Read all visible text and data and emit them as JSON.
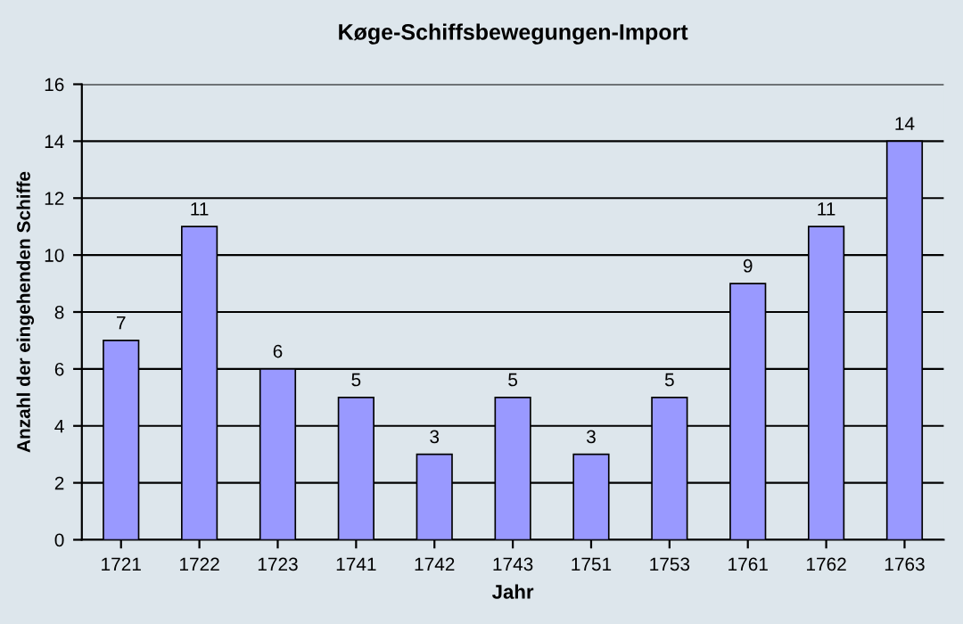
{
  "chart_data": {
    "type": "bar",
    "title": "Køge-Schiffsbewegungen-Import",
    "xlabel": "Jahr",
    "ylabel": "Anzahl der eingehenden Schiffe",
    "categories": [
      "1721",
      "1722",
      "1723",
      "1741",
      "1742",
      "1743",
      "1751",
      "1753",
      "1761",
      "1762",
      "1763"
    ],
    "values": [
      7,
      11,
      6,
      5,
      3,
      5,
      3,
      5,
      9,
      11,
      14
    ],
    "color": "#9999ff",
    "ylim": [
      0,
      16
    ],
    "yticks": [
      0,
      2,
      4,
      6,
      8,
      10,
      12,
      14,
      16
    ],
    "grid": "y",
    "data_labels": true
  }
}
